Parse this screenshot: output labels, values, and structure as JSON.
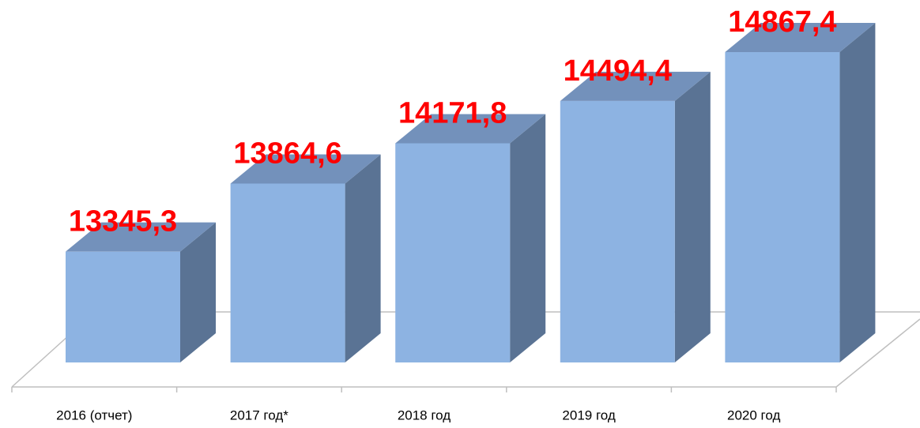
{
  "chart_data": {
    "type": "bar3d",
    "categories": [
      "2016 (отчет)",
      "2017 год*",
      "2018 год",
      "2019 год",
      "2020 год"
    ],
    "values": [
      13345.3,
      13864.6,
      14171.8,
      14494.4,
      14867.4
    ],
    "value_labels": [
      "13345,3",
      "13864,6",
      "14171,8",
      "14494,4",
      "14867,4"
    ],
    "color": "#8db3e2",
    "label_color": "#ff0000",
    "ylim": [
      12500,
      15000
    ]
  }
}
